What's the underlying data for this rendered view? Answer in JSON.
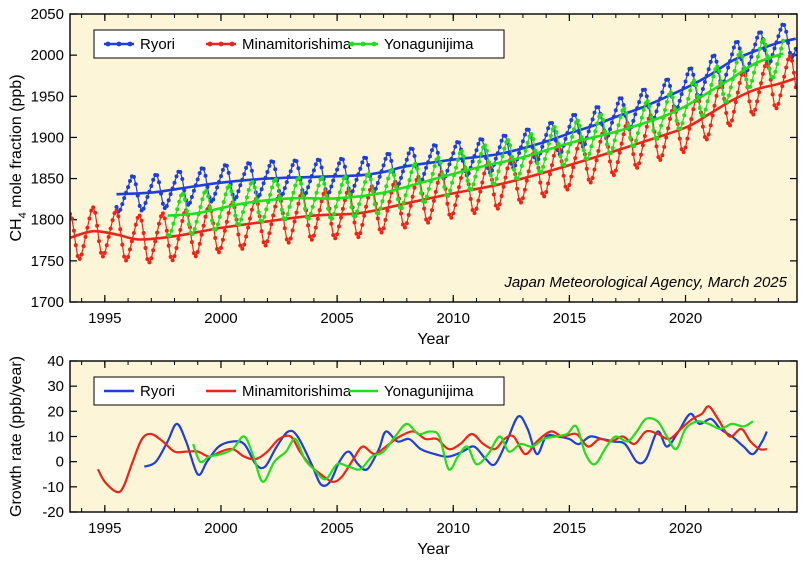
{
  "chart_data": [
    {
      "type": "line",
      "panel": "CH4 mole fraction",
      "ylabel_prefix": "CH",
      "ylabel_sub": "4",
      "ylabel_suffix": " mole fraction (ppb)",
      "xlabel": "Year",
      "xlim": [
        1993.5,
        2024.8
      ],
      "ylim": [
        1700,
        2050
      ],
      "xticks": [
        1995,
        2000,
        2005,
        2010,
        2015,
        2020
      ],
      "yticks": [
        1700,
        1750,
        1800,
        1850,
        1900,
        1950,
        2000,
        2050
      ],
      "grid": false,
      "legend": "top-left",
      "annotation": "Japan Meteorological Agency, March 2025",
      "background": "#fdf5d7",
      "monthly_markers": true,
      "series": [
        {
          "name": "Ryori",
          "color": "#1f3fd8",
          "x_start": 1995.5,
          "x_end": 2024.75,
          "trend": [
            [
              1995.5,
              1831
            ],
            [
              1997,
              1833
            ],
            [
              1998.5,
              1839
            ],
            [
              2000,
              1845
            ],
            [
              2002,
              1850
            ],
            [
              2004,
              1852
            ],
            [
              2006,
              1854
            ],
            [
              2007,
              1858
            ],
            [
              2008,
              1865
            ],
            [
              2010,
              1873
            ],
            [
              2012,
              1880
            ],
            [
              2014,
              1895
            ],
            [
              2015,
              1905
            ],
            [
              2016,
              1914
            ],
            [
              2017,
              1925
            ],
            [
              2018,
              1935
            ],
            [
              2019,
              1947
            ],
            [
              2020,
              1960
            ],
            [
              2021,
              1975
            ],
            [
              2022,
              1993
            ],
            [
              2023,
              2005
            ],
            [
              2024,
              2015
            ],
            [
              2024.75,
              2020
            ]
          ],
          "seasonal_amplitude": 20,
          "seasonal_phase": 0.15
        },
        {
          "name": "Minamitorishima",
          "color": "#e8261a",
          "x_start": 1993.5,
          "x_end": 2024.75,
          "trend": [
            [
              1993.5,
              1778
            ],
            [
              1994.5,
              1786
            ],
            [
              1995.5,
              1782
            ],
            [
              1996.5,
              1776
            ],
            [
              1998,
              1780
            ],
            [
              2000,
              1790
            ],
            [
              2002,
              1798
            ],
            [
              2004,
              1805
            ],
            [
              2006,
              1808
            ],
            [
              2008,
              1820
            ],
            [
              2010,
              1832
            ],
            [
              2012,
              1843
            ],
            [
              2014,
              1858
            ],
            [
              2016,
              1875
            ],
            [
              2018,
              1893
            ],
            [
              2020,
              1912
            ],
            [
              2021,
              1928
            ],
            [
              2022,
              1945
            ],
            [
              2023,
              1958
            ],
            [
              2024,
              1965
            ],
            [
              2024.75,
              1972
            ]
          ],
          "seasonal_amplitude": 28,
          "seasonal_phase": 0.45
        },
        {
          "name": "Yonagunijima",
          "color": "#22dd22",
          "x_start": 1997.7,
          "x_end": 2024.2,
          "trend": [
            [
              1997.7,
              1805
            ],
            [
              1999,
              1808
            ],
            [
              2001,
              1820
            ],
            [
              2003,
              1826
            ],
            [
              2005,
              1826
            ],
            [
              2007,
              1833
            ],
            [
              2009,
              1848
            ],
            [
              2011,
              1863
            ],
            [
              2013,
              1876
            ],
            [
              2015,
              1893
            ],
            [
              2017,
              1907
            ],
            [
              2019,
              1925
            ],
            [
              2020,
              1938
            ],
            [
              2021,
              1955
            ],
            [
              2022,
              1972
            ],
            [
              2023,
              1990
            ],
            [
              2024.2,
              2002
            ]
          ],
          "seasonal_amplitude": 24,
          "seasonal_phase": 0.3
        }
      ]
    },
    {
      "type": "line",
      "panel": "Growth rate",
      "ylabel": "Growth rate (ppb/year)",
      "xlabel": "Year",
      "xlim": [
        1993.5,
        2024.8
      ],
      "ylim": [
        -20,
        40
      ],
      "xticks": [
        1995,
        2000,
        2005,
        2010,
        2015,
        2020
      ],
      "yticks": [
        -20,
        -10,
        0,
        10,
        20,
        30,
        40
      ],
      "grid": false,
      "legend": "top-left",
      "background": "#fdf5d7",
      "series": [
        {
          "name": "Ryori",
          "color": "#1f3fd8",
          "points": [
            [
              1996.7,
              -2
            ],
            [
              1997.2,
              0
            ],
            [
              1997.7,
              8
            ],
            [
              1998.1,
              15
            ],
            [
              1998.5,
              8
            ],
            [
              1999,
              -5
            ],
            [
              1999.4,
              0
            ],
            [
              1999.9,
              6
            ],
            [
              2000.5,
              8
            ],
            [
              2001,
              7
            ],
            [
              2001.5,
              -1
            ],
            [
              2001.9,
              -2
            ],
            [
              2002.4,
              6
            ],
            [
              2002.9,
              12
            ],
            [
              2003.3,
              10
            ],
            [
              2003.9,
              -1
            ],
            [
              2004.3,
              -9
            ],
            [
              2004.7,
              -8
            ],
            [
              2005.1,
              0
            ],
            [
              2005.5,
              4
            ],
            [
              2005.9,
              -1
            ],
            [
              2006.3,
              -3
            ],
            [
              2006.8,
              5
            ],
            [
              2007.1,
              12
            ],
            [
              2007.6,
              8
            ],
            [
              2008.1,
              9
            ],
            [
              2008.6,
              5
            ],
            [
              2009.2,
              3
            ],
            [
              2009.8,
              2
            ],
            [
              2010.4,
              4
            ],
            [
              2010.9,
              6
            ],
            [
              2011.4,
              1
            ],
            [
              2011.8,
              -1
            ],
            [
              2012.3,
              8
            ],
            [
              2012.8,
              18
            ],
            [
              2013.2,
              13
            ],
            [
              2013.6,
              3
            ],
            [
              2014,
              10
            ],
            [
              2014.5,
              10
            ],
            [
              2015,
              9
            ],
            [
              2015.4,
              7
            ],
            [
              2015.9,
              10
            ],
            [
              2016.4,
              9
            ],
            [
              2016.9,
              8
            ],
            [
              2017.4,
              7
            ],
            [
              2017.9,
              0
            ],
            [
              2018.3,
              1
            ],
            [
              2018.8,
              12
            ],
            [
              2019.2,
              6
            ],
            [
              2019.7,
              12
            ],
            [
              2020.2,
              19
            ],
            [
              2020.6,
              15
            ],
            [
              2021.1,
              17
            ],
            [
              2021.5,
              13
            ],
            [
              2022,
              10
            ],
            [
              2022.5,
              6
            ],
            [
              2022.9,
              3
            ],
            [
              2023.3,
              8
            ],
            [
              2023.5,
              12
            ]
          ]
        },
        {
          "name": "Minamitorishima",
          "color": "#e8261a",
          "points": [
            [
              1994.7,
              -3
            ],
            [
              1995,
              -8
            ],
            [
              1995.5,
              -12
            ],
            [
              1995.8,
              -10
            ],
            [
              1996.2,
              0
            ],
            [
              1996.6,
              9
            ],
            [
              1997,
              11
            ],
            [
              1997.5,
              8
            ],
            [
              1998,
              4
            ],
            [
              1998.5,
              4
            ],
            [
              1999,
              4
            ],
            [
              1999.5,
              2
            ],
            [
              2000,
              4
            ],
            [
              2000.5,
              5
            ],
            [
              2001,
              2
            ],
            [
              2001.5,
              1
            ],
            [
              2002,
              4
            ],
            [
              2002.5,
              9
            ],
            [
              2003,
              10
            ],
            [
              2003.4,
              4
            ],
            [
              2003.9,
              -2
            ],
            [
              2004.3,
              -5
            ],
            [
              2004.8,
              -8
            ],
            [
              2005.2,
              -6
            ],
            [
              2005.7,
              1
            ],
            [
              2006.1,
              6
            ],
            [
              2006.6,
              3
            ],
            [
              2007.1,
              6
            ],
            [
              2007.7,
              10
            ],
            [
              2008.3,
              12
            ],
            [
              2008.8,
              9
            ],
            [
              2009.3,
              9
            ],
            [
              2009.8,
              5
            ],
            [
              2010.3,
              7
            ],
            [
              2010.8,
              11
            ],
            [
              2011.3,
              7
            ],
            [
              2011.8,
              5
            ],
            [
              2012.2,
              9
            ],
            [
              2012.6,
              10
            ],
            [
              2013.1,
              3
            ],
            [
              2013.6,
              8
            ],
            [
              2014.2,
              12
            ],
            [
              2014.7,
              10
            ],
            [
              2015.3,
              11
            ],
            [
              2015.8,
              6
            ],
            [
              2016.3,
              9
            ],
            [
              2016.8,
              8
            ],
            [
              2017.3,
              10
            ],
            [
              2017.8,
              7
            ],
            [
              2018.3,
              12
            ],
            [
              2018.8,
              11
            ],
            [
              2019.3,
              9
            ],
            [
              2019.8,
              13
            ],
            [
              2020.3,
              17
            ],
            [
              2020.7,
              19
            ],
            [
              2021,
              22
            ],
            [
              2021.4,
              17
            ],
            [
              2021.9,
              10
            ],
            [
              2022.4,
              13
            ],
            [
              2022.8,
              8
            ],
            [
              2023.2,
              5
            ],
            [
              2023.5,
              5
            ]
          ]
        },
        {
          "name": "Yonagunijima",
          "color": "#22dd22",
          "points": [
            [
              1998.8,
              7
            ],
            [
              1999.1,
              0
            ],
            [
              1999.5,
              2
            ],
            [
              2000,
              3
            ],
            [
              2000.5,
              5
            ],
            [
              2001,
              10
            ],
            [
              2001.4,
              2
            ],
            [
              2001.8,
              -8
            ],
            [
              2002.3,
              0
            ],
            [
              2002.8,
              4
            ],
            [
              2003.2,
              9
            ],
            [
              2003.6,
              1
            ],
            [
              2004,
              -3
            ],
            [
              2004.5,
              -7
            ],
            [
              2005,
              -1
            ],
            [
              2005.5,
              -2
            ],
            [
              2006,
              -3
            ],
            [
              2006.5,
              2
            ],
            [
              2007,
              4
            ],
            [
              2007.5,
              10
            ],
            [
              2008,
              15
            ],
            [
              2008.5,
              11
            ],
            [
              2009,
              12
            ],
            [
              2009.4,
              10
            ],
            [
              2009.8,
              -3
            ],
            [
              2010.2,
              2
            ],
            [
              2010.6,
              6
            ],
            [
              2011,
              -1
            ],
            [
              2011.5,
              3
            ],
            [
              2012,
              10
            ],
            [
              2012.4,
              4
            ],
            [
              2012.9,
              7
            ],
            [
              2013.4,
              6
            ],
            [
              2013.9,
              9
            ],
            [
              2014.4,
              10
            ],
            [
              2014.9,
              11
            ],
            [
              2015.3,
              14
            ],
            [
              2015.7,
              3
            ],
            [
              2016.1,
              -1
            ],
            [
              2016.6,
              6
            ],
            [
              2017,
              10
            ],
            [
              2017.5,
              8
            ],
            [
              2017.9,
              12
            ],
            [
              2018.3,
              17
            ],
            [
              2018.8,
              16
            ],
            [
              2019.2,
              10
            ],
            [
              2019.6,
              5
            ],
            [
              2020,
              13
            ],
            [
              2020.5,
              16
            ],
            [
              2021,
              15
            ],
            [
              2021.5,
              13
            ],
            [
              2022,
              15
            ],
            [
              2022.5,
              14
            ],
            [
              2022.9,
              16
            ]
          ]
        }
      ]
    }
  ]
}
